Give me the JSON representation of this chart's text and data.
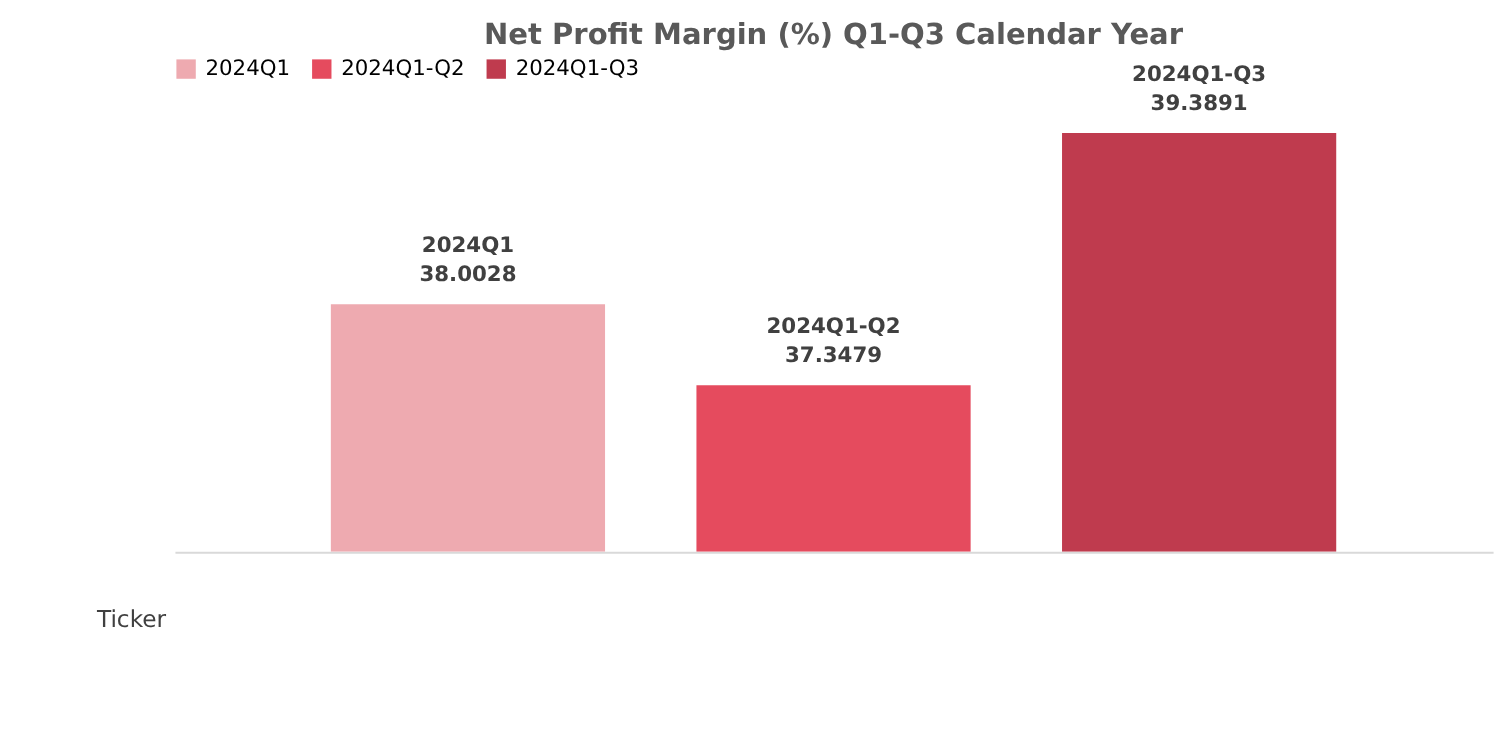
{
  "chart_data": {
    "type": "bar",
    "title": "Net Profit Margin (%) Q1-Q3 Calendar Year",
    "categories": [
      null
    ],
    "series": [
      {
        "name": "2024Q1",
        "color": "#eeaab0",
        "values": [
          38.0028
        ]
      },
      {
        "name": "2024Q1-Q2",
        "color": "#e54b5e",
        "values": [
          37.3479
        ]
      },
      {
        "name": "2024Q1-Q3",
        "color": "#bf3b4e",
        "values": [
          39.3891
        ]
      }
    ],
    "ylim": [
      36,
      40
    ],
    "data_labels": true,
    "legend": "top left",
    "tick_labels": false,
    "grid": false,
    "annotations": [
      "Ticker"
    ]
  }
}
